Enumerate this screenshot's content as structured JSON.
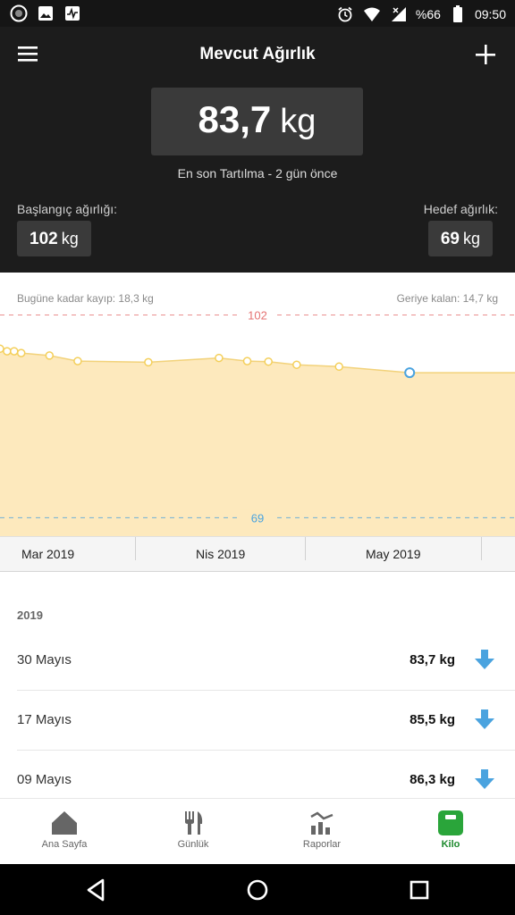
{
  "status_bar": {
    "battery": "%66",
    "time": "09:50",
    "icons": [
      "app-circle-icon",
      "gallery-icon",
      "activity-icon",
      "alarm-icon",
      "wifi-icon",
      "signal-icon",
      "battery-icon"
    ]
  },
  "header": {
    "title": "Mevcut Ağırlık",
    "current_weight": "83,7",
    "unit": "kg",
    "last_weigh": "En son Tartılma - 2 gün önce",
    "start_label": "Başlangıç ağırlığı:",
    "start_value": "102",
    "target_label": "Hedef ağırlık:",
    "target_value": "69"
  },
  "chart": {
    "lost_text": "Bugüne kadar kayıp: 18,3 kg",
    "remaining_text": "Geriye kalan: 14,7 kg",
    "x_ticks": [
      "Mar 2019",
      "Nis 2019",
      "May 2019"
    ]
  },
  "chart_data": {
    "type": "area",
    "ylim": [
      66,
      106
    ],
    "reference_lines": [
      {
        "label": "102",
        "value": 102,
        "color": "#e57373"
      },
      {
        "label": "69",
        "value": 69,
        "color": "#4aa3df"
      }
    ],
    "points": [
      {
        "x": "2019-03-01",
        "y": 96.5
      },
      {
        "x": "2019-03-02",
        "y": 96.1
      },
      {
        "x": "2019-03-03",
        "y": 96.1
      },
      {
        "x": "2019-03-04",
        "y": 95.8
      },
      {
        "x": "2019-03-08",
        "y": 95.4
      },
      {
        "x": "2019-03-12",
        "y": 94.5
      },
      {
        "x": "2019-03-22",
        "y": 94.3
      },
      {
        "x": "2019-04-01",
        "y": 95.0
      },
      {
        "x": "2019-04-05",
        "y": 94.5
      },
      {
        "x": "2019-04-08",
        "y": 94.4
      },
      {
        "x": "2019-04-12",
        "y": 93.9
      },
      {
        "x": "2019-04-18",
        "y": 93.6
      },
      {
        "x": "2019-04-28",
        "y": 92.6
      }
    ],
    "fill_color": "#fde9bd",
    "line_color": "#f2d27a",
    "point_color": "#f4cf5a",
    "last_point_color": "#4aa3df"
  },
  "list": {
    "year": "2019",
    "entries": [
      {
        "date": "30 Mayıs",
        "value": "83,7 kg"
      },
      {
        "date": "17 Mayıs",
        "value": "85,5 kg"
      },
      {
        "date": "09 Mayıs",
        "value": "86,3 kg"
      }
    ]
  },
  "bottom_nav": [
    {
      "label": "Ana Sayfa",
      "icon": "home-icon"
    },
    {
      "label": "Günlük",
      "icon": "fork-knife-icon"
    },
    {
      "label": "Raporlar",
      "icon": "reports-icon"
    },
    {
      "label": "Kilo",
      "icon": "scale-icon"
    }
  ],
  "colors": {
    "header_bg": "#1c1c1c",
    "accent_green": "#1e8a2e",
    "arrow_blue": "#4aa3df"
  }
}
